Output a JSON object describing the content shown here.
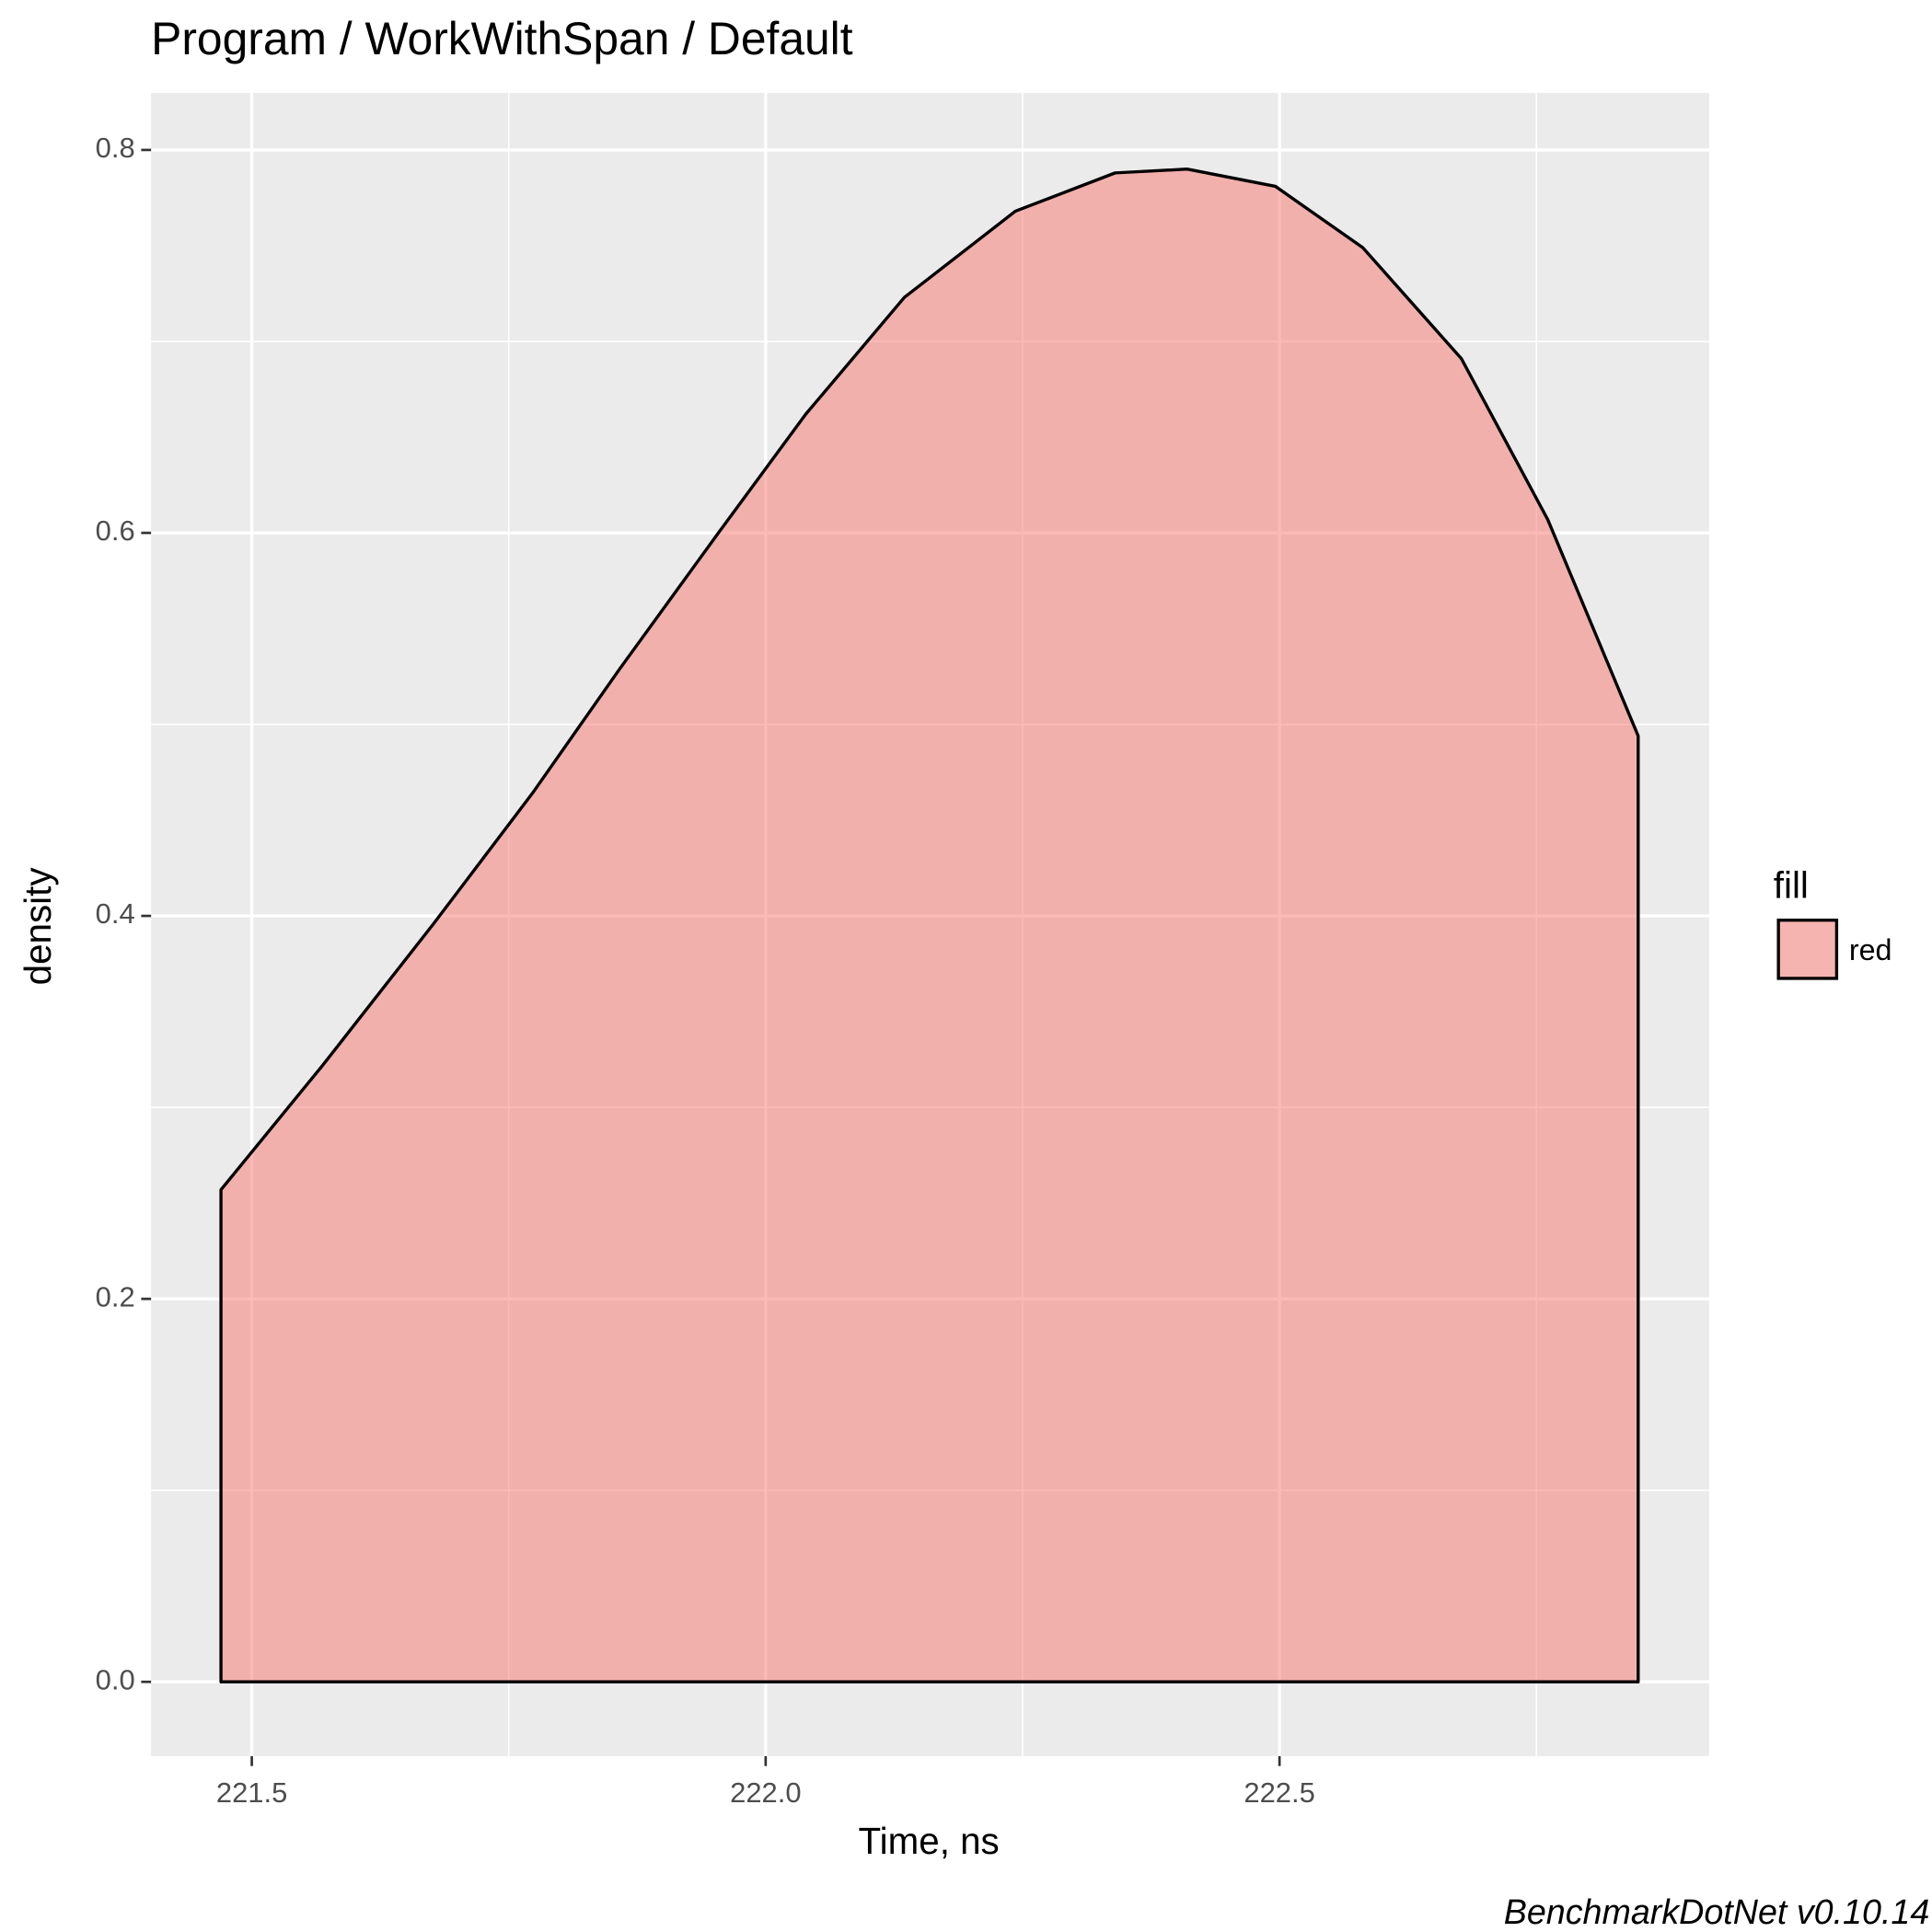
{
  "chart_data": {
    "type": "area",
    "title": "Program / WorkWithSpan / Default",
    "x_label": "Time, ns",
    "y_label": "density",
    "caption": "BenchmarkDotNet v0.10.14",
    "legend_title": "fill",
    "legend": "right",
    "grid": true,
    "fill_opacity": 0.5,
    "xlim": [
      221.402,
      222.918
    ],
    "ylim": [
      -0.0388,
      0.8298
    ],
    "xticks": [
      221.5,
      {
        "value": 222,
        "label": "222.0"
      },
      222.5
    ],
    "yticks": [
      {
        "value": 0,
        "label": "0.0"
      },
      0.2,
      0.4,
      0.6,
      0.8
    ],
    "x_minor_ticks": [
      221.75,
      222.25,
      222.75
    ],
    "y_minor_ticks": [
      0.1,
      0.3,
      0.5,
      0.7
    ],
    "series": [
      {
        "name": "red",
        "color": "#F8766D",
        "x": [
          221.47,
          221.569,
          221.677,
          221.773,
          221.858,
          221.954,
          222.039,
          222.135,
          222.243,
          222.34,
          222.41,
          222.496,
          222.581,
          222.677,
          222.761,
          222.849
        ],
        "values": [
          0.257,
          0.322,
          0.396,
          0.464,
          0.529,
          0.6,
          0.662,
          0.723,
          0.768,
          0.788,
          0.79,
          0.781,
          0.749,
          0.691,
          0.607,
          0.494
        ]
      }
    ]
  }
}
